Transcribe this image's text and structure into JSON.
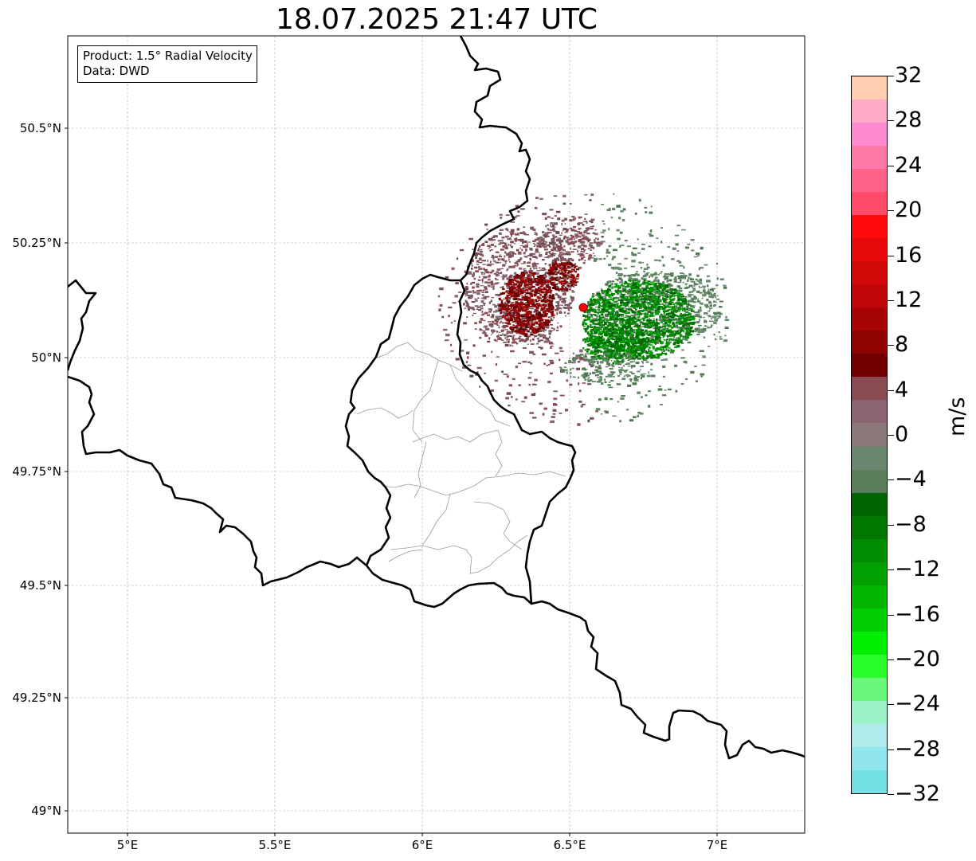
{
  "title": "18.07.2025 21:47 UTC",
  "info": {
    "product": "Product: 1.5° Radial Velocity",
    "source": "Data: DWD"
  },
  "map": {
    "lon_range": [
      4.8,
      7.3
    ],
    "lat_range": [
      48.95,
      50.7
    ],
    "gridlines": true,
    "x_ticks": [
      {
        "value": 5.0,
        "label": "5°E"
      },
      {
        "value": 5.5,
        "label": "5.5°E"
      },
      {
        "value": 6.0,
        "label": "6°E"
      },
      {
        "value": 6.5,
        "label": "6.5°E"
      },
      {
        "value": 7.0,
        "label": "7°E"
      }
    ],
    "y_ticks": [
      {
        "value": 50.5,
        "label": "50.5°N"
      },
      {
        "value": 50.25,
        "label": "50.25°N"
      },
      {
        "value": 50.0,
        "label": "50°N"
      },
      {
        "value": 49.75,
        "label": "49.75°N"
      },
      {
        "value": 49.5,
        "label": "49.5°N"
      },
      {
        "value": 49.25,
        "label": "49.25°N"
      },
      {
        "value": 49.0,
        "label": "49°N"
      }
    ],
    "radar_site": {
      "lon": 6.55,
      "lat": 50.11,
      "color": "#ff0000"
    }
  },
  "colorbar": {
    "unit": "m/s",
    "min": -32,
    "max": 32,
    "ticks": [
      {
        "value": 32,
        "label": "32"
      },
      {
        "value": 28,
        "label": "28"
      },
      {
        "value": 24,
        "label": "24"
      },
      {
        "value": 20,
        "label": "20"
      },
      {
        "value": 16,
        "label": "16"
      },
      {
        "value": 12,
        "label": "12"
      },
      {
        "value": 8,
        "label": "8"
      },
      {
        "value": 4,
        "label": "4"
      },
      {
        "value": 0,
        "label": "0"
      },
      {
        "value": -4,
        "label": "−4"
      },
      {
        "value": -8,
        "label": "−8"
      },
      {
        "value": -12,
        "label": "−12"
      },
      {
        "value": -16,
        "label": "−16"
      },
      {
        "value": -20,
        "label": "−20"
      },
      {
        "value": -24,
        "label": "−24"
      },
      {
        "value": -28,
        "label": "−28"
      },
      {
        "value": -32,
        "label": "−32"
      }
    ],
    "colors_top_to_bottom": [
      "#ffceb0",
      "#ffaac8",
      "#ff8ad0",
      "#ff7aa8",
      "#ff6488",
      "#ff4a68",
      "#ff0a0a",
      "#e80a0a",
      "#d20808",
      "#be0606",
      "#a60404",
      "#8e0202",
      "#720000",
      "#8a4a52",
      "#8a6470",
      "#8a7878",
      "#6a8870",
      "#5a7e5a",
      "#006600",
      "#007800",
      "#008c00",
      "#00a000",
      "#00b400",
      "#00cc00",
      "#00ee00",
      "#2aff2a",
      "#6af67a",
      "#9ef2c8",
      "#b0eaea",
      "#90e6ec",
      "#74e0e6"
    ]
  }
}
